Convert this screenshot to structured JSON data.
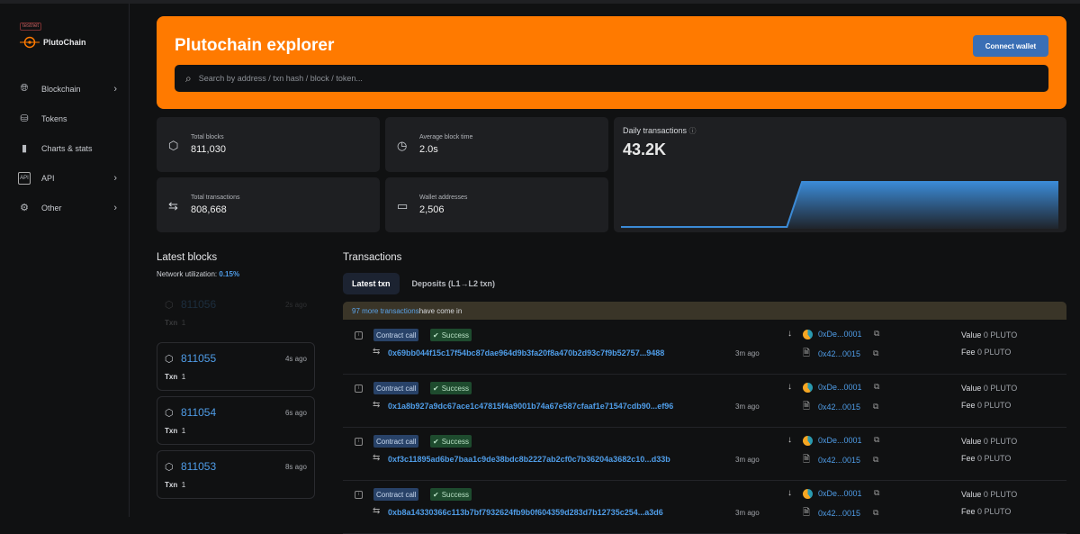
{
  "sidebar": {
    "badge": "testnet",
    "brand": "PlutoChain",
    "items": [
      {
        "label": "Blockchain",
        "icon": "globe-icon",
        "chevron": true
      },
      {
        "label": "Tokens",
        "icon": "tokens-icon",
        "chevron": false
      },
      {
        "label": "Charts & stats",
        "icon": "bar-chart-icon",
        "chevron": false
      },
      {
        "label": "API",
        "icon": "api-icon",
        "chevron": true
      },
      {
        "label": "Other",
        "icon": "gear-icon",
        "chevron": true
      }
    ]
  },
  "banner": {
    "title": "Plutochain explorer",
    "connect_label": "Connect wallet",
    "search_placeholder": "Search by address / txn hash / block / token...",
    "color": "#ff7a00"
  },
  "stats": [
    {
      "label": "Total blocks",
      "value": "811,030",
      "icon": "cube-icon"
    },
    {
      "label": "Average block time",
      "value": "2.0s",
      "icon": "clock-icon"
    },
    {
      "label": "Total transactions",
      "value": "808,668",
      "icon": "transfer-icon"
    },
    {
      "label": "Wallet addresses",
      "value": "2,506",
      "icon": "wallet-icon"
    }
  ],
  "daily": {
    "title": "Daily transactions",
    "value": "43.2K",
    "chart_data": {
      "type": "area",
      "values": [
        0,
        0,
        0,
        0,
        0,
        0,
        0,
        0,
        0,
        0,
        0,
        0,
        1,
        1,
        1,
        1,
        1,
        1,
        1,
        1,
        1,
        1,
        1,
        1,
        1,
        1,
        1,
        1,
        1,
        1
      ],
      "color": "#3b8ad6"
    }
  },
  "blocks": {
    "title": "Latest blocks",
    "util_label": "Network utilization:",
    "util_value": "0.15%",
    "items": [
      {
        "number": "811056",
        "ago": "2s ago",
        "txn_label": "Txn",
        "txn": "1"
      },
      {
        "number": "811055",
        "ago": "4s ago",
        "txn_label": "Txn",
        "txn": "1"
      },
      {
        "number": "811054",
        "ago": "6s ago",
        "txn_label": "Txn",
        "txn": "1"
      },
      {
        "number": "811053",
        "ago": "8s ago",
        "txn_label": "Txn",
        "txn": "1"
      }
    ]
  },
  "transactions": {
    "title": "Transactions",
    "tabs": [
      "Latest txn",
      "Deposits (L1→L2 txn)"
    ],
    "notice_link": "97 more transactions",
    "notice_rest": " have come in",
    "items": [
      {
        "type": "Contract call",
        "status": "Success",
        "hash": "0x69bb044f15c17f54bc87dae964d9b3fa20f8a470b2d93c7f9b52757...9488",
        "ago": "3m ago",
        "from": "0xDe...0001",
        "to": "0x42...0015",
        "value_label": "Value",
        "value": "0 PLUTO",
        "fee_label": "Fee",
        "fee": "0 PLUTO"
      },
      {
        "type": "Contract call",
        "status": "Success",
        "hash": "0x1a8b927a9dc67ace1c47815f4a9001b74a67e587cfaaf1e71547cdb90...ef96",
        "ago": "3m ago",
        "from": "0xDe...0001",
        "to": "0x42...0015",
        "value_label": "Value",
        "value": "0 PLUTO",
        "fee_label": "Fee",
        "fee": "0 PLUTO"
      },
      {
        "type": "Contract call",
        "status": "Success",
        "hash": "0xf3c11895ad6be7baa1c9de38bdc8b2227ab2cf0c7b36204a3682c10...d33b",
        "ago": "3m ago",
        "from": "0xDe...0001",
        "to": "0x42...0015",
        "value_label": "Value",
        "value": "0 PLUTO",
        "fee_label": "Fee",
        "fee": "0 PLUTO"
      },
      {
        "type": "Contract call",
        "status": "Success",
        "hash": "0xb8a14330366c113b7bf7932624fb9b0f604359d283d7b12735c254...a3d6",
        "ago": "3m ago",
        "from": "0xDe...0001",
        "to": "0x42...0015",
        "value_label": "Value",
        "value": "0 PLUTO",
        "fee_label": "Fee",
        "fee": "0 PLUTO"
      }
    ]
  }
}
